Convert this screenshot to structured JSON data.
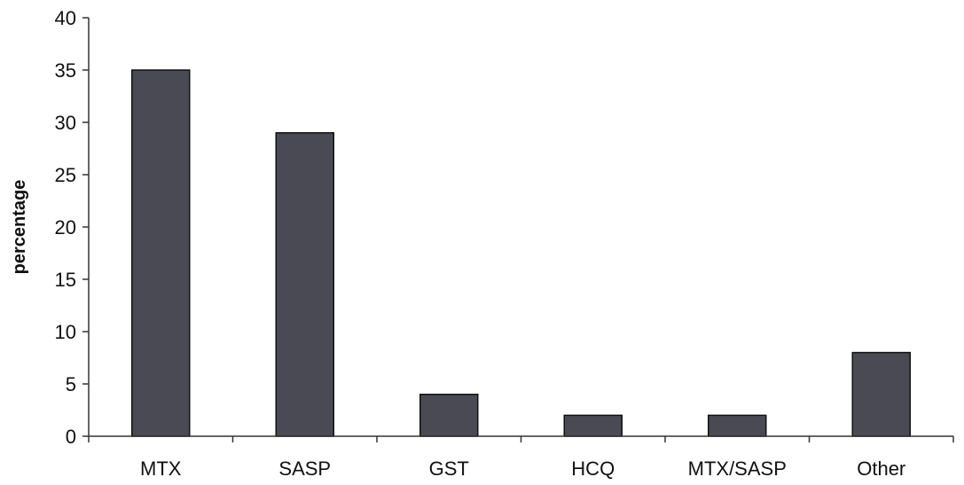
{
  "chart_data": {
    "type": "bar",
    "title": "",
    "xlabel": "",
    "ylabel": "percentage",
    "ylim": [
      0,
      40
    ],
    "yticks": [
      0,
      5,
      10,
      15,
      20,
      25,
      30,
      35,
      40
    ],
    "categories": [
      "MTX",
      "SASP",
      "GST",
      "HCQ",
      "MTX/SASP",
      "Other"
    ],
    "values": [
      35,
      29,
      4,
      2,
      2,
      8
    ],
    "grid": false,
    "legend": "none",
    "bar_color": "#4a4a54"
  }
}
